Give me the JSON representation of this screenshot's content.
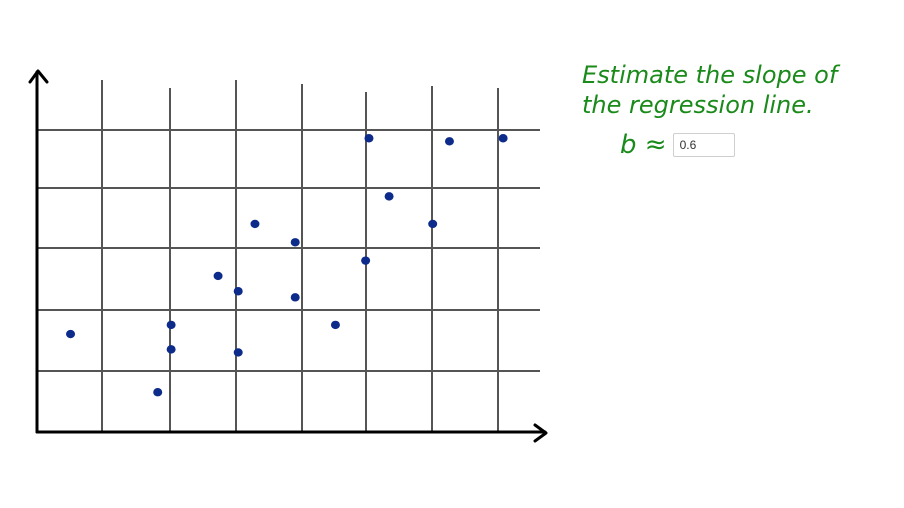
{
  "prompt": {
    "line1": "Estimate the slope of",
    "line2": "the regression line."
  },
  "answer": {
    "label": "b ≈",
    "value": "0.6"
  },
  "colors": {
    "grid": "#555555",
    "axis": "#000000",
    "point": "#0d2b8a",
    "text": "#1a8a1a"
  },
  "chart_data": {
    "type": "scatter",
    "title": "",
    "xlabel": "",
    "ylabel": "",
    "grid": true,
    "xlim": [
      0,
      7.5
    ],
    "ylim": [
      0,
      5
    ],
    "points": [
      {
        "x": 0.5,
        "y": 1.6
      },
      {
        "x": 1.8,
        "y": 0.65
      },
      {
        "x": 2.0,
        "y": 1.75
      },
      {
        "x": 2.0,
        "y": 1.35
      },
      {
        "x": 2.7,
        "y": 2.55
      },
      {
        "x": 3.0,
        "y": 2.3
      },
      {
        "x": 3.0,
        "y": 1.3
      },
      {
        "x": 3.25,
        "y": 3.4
      },
      {
        "x": 3.85,
        "y": 3.1
      },
      {
        "x": 3.85,
        "y": 2.2
      },
      {
        "x": 4.45,
        "y": 1.75
      },
      {
        "x": 4.9,
        "y": 2.8
      },
      {
        "x": 4.95,
        "y": 4.8
      },
      {
        "x": 5.25,
        "y": 3.85
      },
      {
        "x": 5.9,
        "y": 3.4
      },
      {
        "x": 6.15,
        "y": 4.75
      },
      {
        "x": 6.95,
        "y": 4.8
      }
    ]
  }
}
